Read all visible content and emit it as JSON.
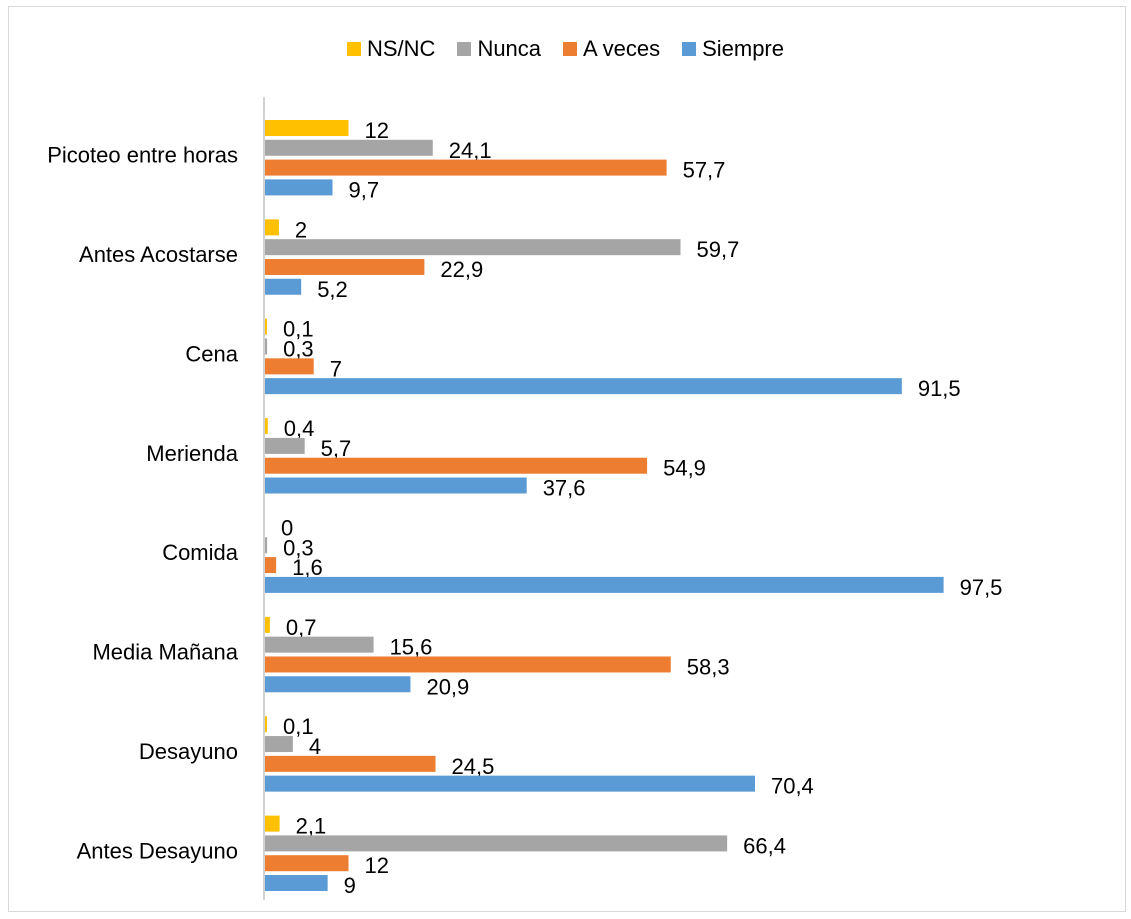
{
  "chart_data": {
    "type": "bar",
    "orientation": "horizontal",
    "categories": [
      "Antes Desayuno",
      "Desayuno",
      "Media Mañana",
      "Comida",
      "Merienda",
      "Cena",
      "Antes Acostarse",
      "Picoteo entre horas"
    ],
    "series": [
      {
        "name": "Siempre",
        "color": "#5b9bd5",
        "values": [
          9,
          70.4,
          20.9,
          97.5,
          37.6,
          91.5,
          5.2,
          9.7
        ],
        "labels": [
          "9",
          "70,4",
          "20,9",
          "97,5",
          "37,6",
          "91,5",
          "5,2",
          "9,7"
        ]
      },
      {
        "name": "A veces",
        "color": "#ed7d31",
        "values": [
          12,
          24.5,
          58.3,
          1.6,
          54.9,
          7,
          22.9,
          57.7
        ],
        "labels": [
          "12",
          "24,5",
          "58,3",
          "1,6",
          "54,9",
          "7",
          "22,9",
          "57,7"
        ]
      },
      {
        "name": "Nunca",
        "color": "#a5a5a5",
        "values": [
          66.4,
          4,
          15.6,
          0.3,
          5.7,
          0.3,
          59.7,
          24.1
        ],
        "labels": [
          "66,4",
          "4",
          "15,6",
          "0,3",
          "5,7",
          "0,3",
          "59,7",
          "24,1"
        ]
      },
      {
        "name": "NS/NC",
        "color": "#ffc000",
        "values": [
          2.1,
          0.1,
          0.7,
          0,
          0.4,
          0.1,
          2,
          12
        ],
        "labels": [
          "2,1",
          "0,1",
          "0,7",
          "0",
          "0,4",
          "0,1",
          "2",
          "12"
        ]
      }
    ],
    "legend_order": [
      "NS/NC",
      "Nunca",
      "A veces",
      "Siempre"
    ],
    "legend_position": "top",
    "xlim": [
      0,
      100
    ],
    "grid": false
  }
}
